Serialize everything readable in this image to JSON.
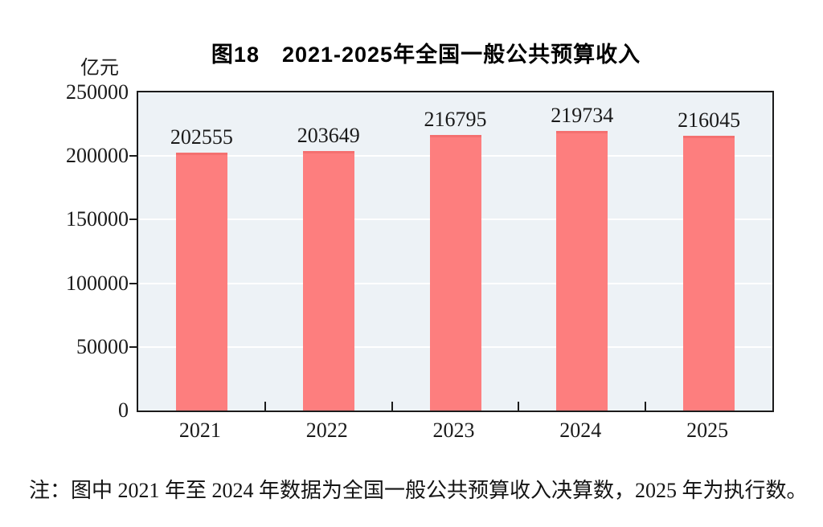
{
  "chart_data": {
    "type": "bar",
    "title": "图18　2021-2025年全国一般公共预算收入",
    "categories": [
      "2021",
      "2022",
      "2023",
      "2024",
      "2025"
    ],
    "values": [
      202555,
      203649,
      216795,
      219734,
      216045
    ],
    "xlabel": "",
    "ylabel": "亿元",
    "ylim": [
      0,
      250000
    ],
    "yticks": [
      0,
      50000,
      100000,
      150000,
      200000,
      250000
    ],
    "grid": true,
    "legend_position": "none",
    "bar_color": "#fd7e7e",
    "bar_edge_color": "#f47070",
    "plot_background": "#edf2f6",
    "gridline_color": "#ffffff",
    "frame_color": "#1b1b1b",
    "note": "注：图中 2021 年至 2024 年数据为全国一般公共预算收入决算数，2025 年为执行数。"
  }
}
